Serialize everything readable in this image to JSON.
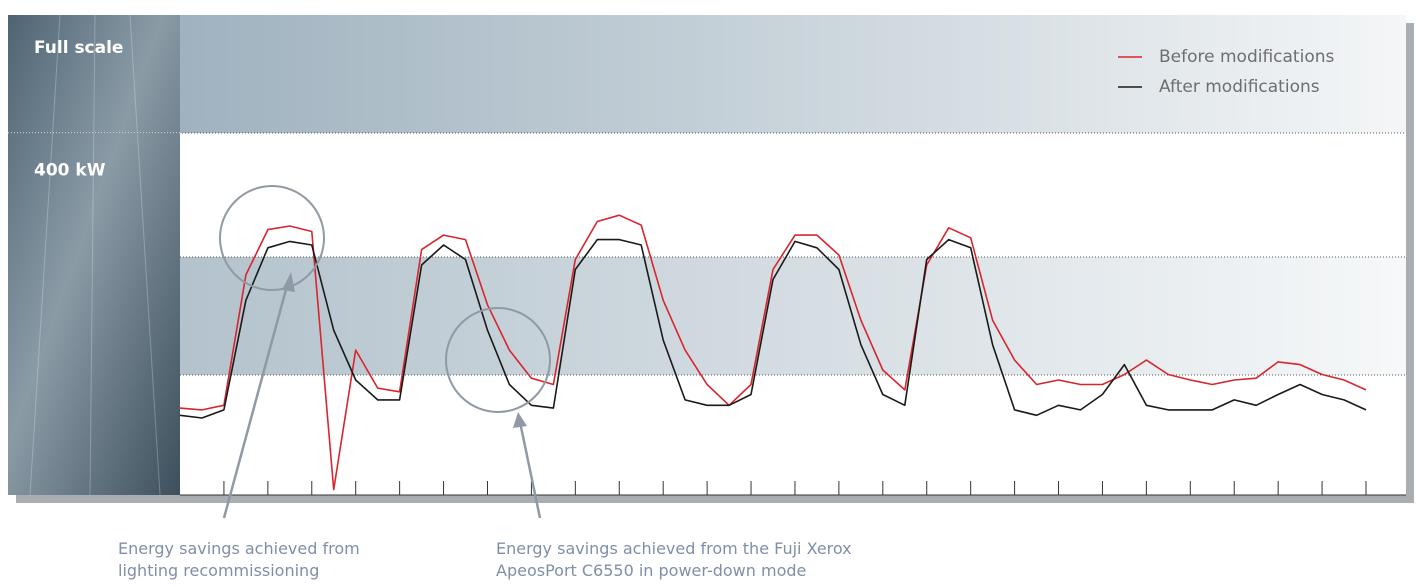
{
  "chart_data": {
    "type": "line",
    "band_label": "Full scale",
    "categories": [
      null,
      null,
      null,
      null,
      null,
      null,
      null,
      null,
      null,
      null,
      null,
      null,
      null,
      null,
      null,
      null,
      null,
      null,
      null,
      null,
      null,
      null,
      null,
      null,
      null,
      null,
      null,
      null,
      null,
      null,
      null,
      null,
      null,
      null,
      null,
      null,
      null,
      null,
      null,
      null,
      null,
      null,
      null,
      null,
      null,
      null,
      null,
      null,
      null,
      null,
      null,
      null,
      null,
      null,
      null
    ],
    "series": [
      {
        "name": "Before modifications",
        "color": "#d7262e",
        "values": [
          96,
          94,
          99,
          243,
          293,
          297,
          291,
          6,
          160,
          118,
          114,
          271,
          287,
          282,
          210,
          160,
          129,
          122,
          260,
          302,
          309,
          298,
          215,
          160,
          122,
          99,
          122,
          249,
          287,
          287,
          265,
          193,
          138,
          116,
          254,
          295,
          284,
          193,
          149,
          122,
          127,
          122,
          122,
          133,
          149,
          133,
          127,
          122,
          127,
          129,
          147,
          144,
          133,
          127,
          116
        ]
      },
      {
        "name": "After modifications",
        "color": "#1a1a1a",
        "values": [
          88,
          85,
          94,
          215,
          273,
          280,
          276,
          182,
          127,
          105,
          105,
          254,
          276,
          260,
          182,
          122,
          99,
          96,
          249,
          282,
          282,
          276,
          171,
          105,
          99,
          99,
          111,
          238,
          280,
          273,
          249,
          166,
          111,
          99,
          260,
          282,
          273,
          166,
          94,
          88,
          99,
          94,
          111,
          144,
          99,
          94,
          94,
          94,
          105,
          99,
          111,
          122,
          111,
          105,
          94
        ]
      }
    ],
    "ylim": [
      0,
      530
    ],
    "yticks": [
      {
        "value": 400,
        "label": "400 kW"
      }
    ],
    "annotations": [
      {
        "text": "Energy savings achieved from lighting recommissioning"
      },
      {
        "text": "Energy savings achieved from the Fuji Xerox ApeosPort C6550 in power-down mode"
      }
    ]
  }
}
